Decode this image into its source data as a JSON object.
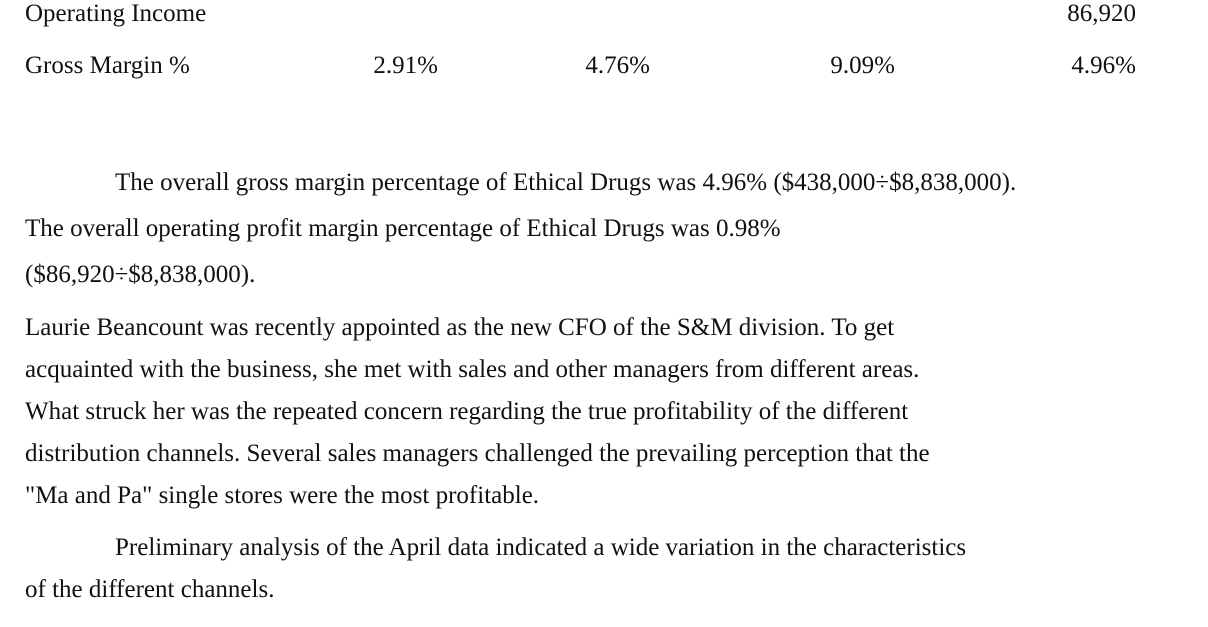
{
  "table": {
    "rows": [
      {
        "label": "Operating Income",
        "values": [
          "",
          "",
          "",
          "86,920"
        ]
      },
      {
        "label": "Gross Margin %",
        "values": [
          "2.91%",
          "4.76%",
          "9.09%",
          "4.96%"
        ]
      }
    ]
  },
  "paragraphs": [
    {
      "lines": [
        "The overall gross margin percentage of Ethical Drugs was 4.96% ($438,000÷$8,838,000).",
        "The overall operating profit margin percentage of Ethical Drugs was 0.98%",
        "($86,920÷$8,838,000)."
      ]
    },
    {
      "lines": [
        "Laurie Beancount was recently appointed as the new CFO of the S&M division.  To get",
        "acquainted with the business, she met with sales and other managers from different areas.",
        "What struck her was the repeated concern regarding the true profitability of the different",
        "distribution channels.  Several sales managers challenged the prevailing perception that the",
        "\"Ma and Pa\" single stores were the most profitable."
      ]
    },
    {
      "lines": [
        "Preliminary analysis of the April data indicated a wide variation in the characteristics",
        "of the different channels."
      ]
    }
  ]
}
